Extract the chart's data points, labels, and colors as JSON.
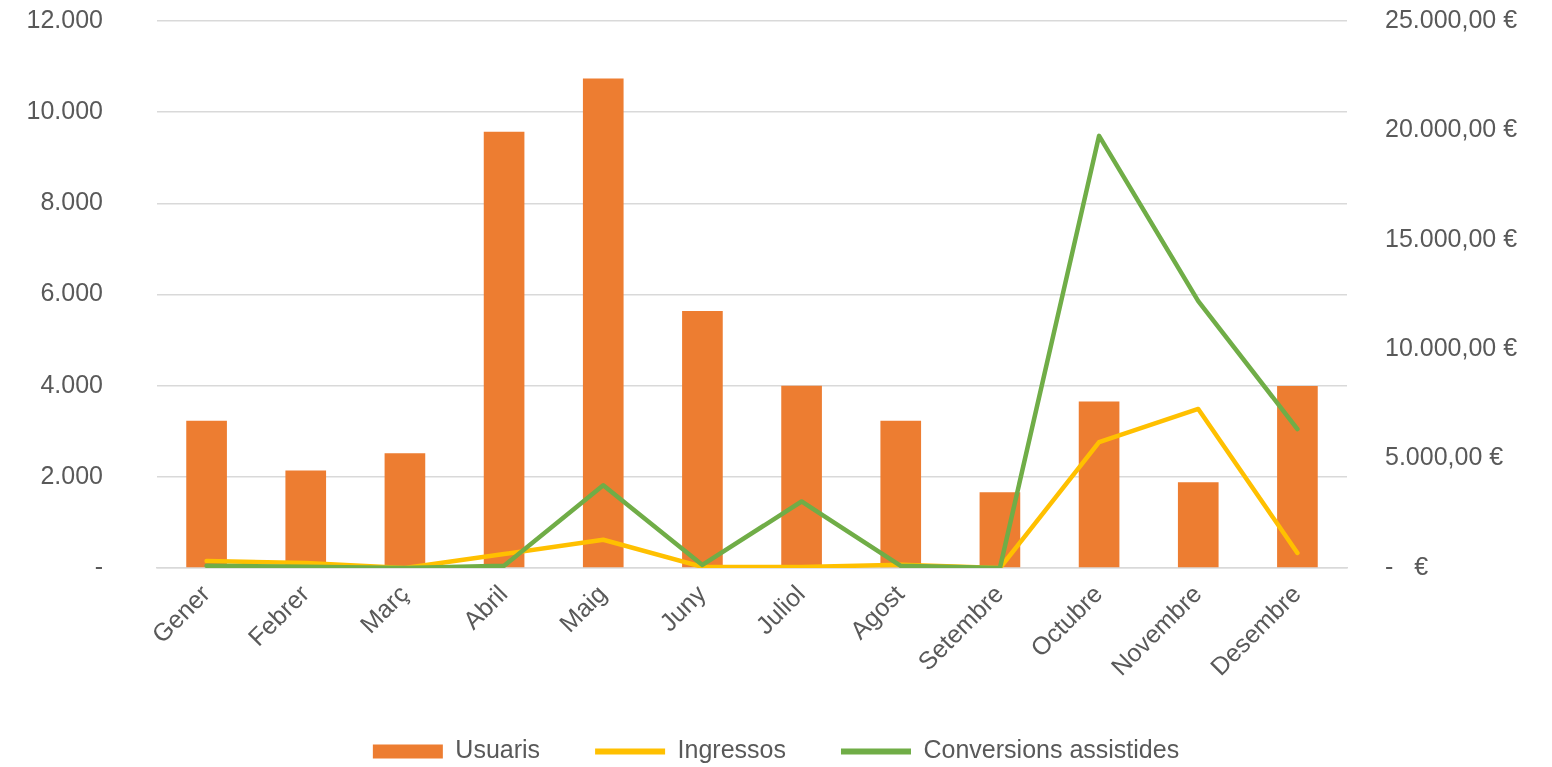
{
  "chart_data": {
    "type": "bar",
    "categories": [
      "Gener",
      "Febrer",
      "Març",
      "Abril",
      "Maig",
      "Juny",
      "Juliol",
      "Agost",
      "Setembre",
      "Octubre",
      "Novembre",
      "Desembre"
    ],
    "series": [
      {
        "name": "Usuaris",
        "color": "#ed7d31",
        "values": [
          3230,
          2140,
          2520,
          9570,
          10740,
          5640,
          4000,
          3230,
          1660,
          3650,
          1880,
          3990
        ]
      },
      {
        "name": "Ingressos",
        "type": "line",
        "axis": "y2",
        "color": "#ffc000",
        "values": [
          320,
          230,
          0,
          640,
          1290,
          50,
          50,
          150,
          0,
          5750,
          7270,
          690
        ]
      },
      {
        "name": "Conversions assistides",
        "type": "line",
        "axis": "y2",
        "color": "#70ad47",
        "values": [
          100,
          60,
          0,
          100,
          3780,
          140,
          3040,
          100,
          0,
          19750,
          12200,
          6350
        ]
      }
    ],
    "ylim": [
      0,
      12000
    ],
    "yticks": [
      {
        "value": 0,
        "label": "-"
      },
      {
        "value": 2000,
        "label": "2.000"
      },
      {
        "value": 4000,
        "label": "4.000"
      },
      {
        "value": 6000,
        "label": "6.000"
      },
      {
        "value": 8000,
        "label": "8.000"
      },
      {
        "value": 10000,
        "label": "10.000"
      },
      {
        "value": 12000,
        "label": "12.000"
      }
    ],
    "y2lim": [
      0,
      25000
    ],
    "y2ticks": [
      {
        "value": 0,
        "label": "-   €"
      },
      {
        "value": 5000,
        "label": "5.000,00 €"
      },
      {
        "value": 10000,
        "label": "10.000,00 €"
      },
      {
        "value": 15000,
        "label": "15.000,00 €"
      },
      {
        "value": 20000,
        "label": "20.000,00 €"
      },
      {
        "value": 25000,
        "label": "25.000,00 €"
      }
    ],
    "grid": "y",
    "legend": "bottom"
  }
}
